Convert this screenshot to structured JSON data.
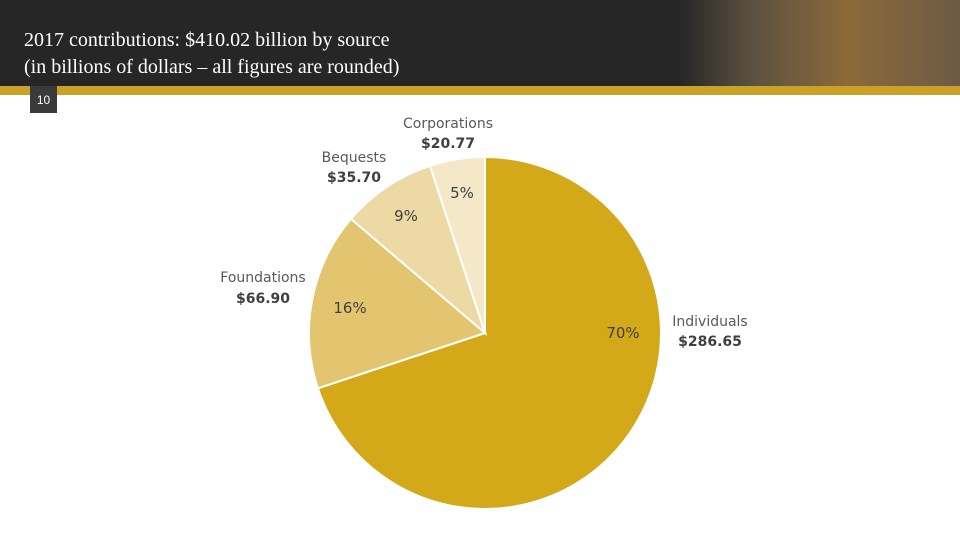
{
  "header": {
    "title_lines": [
      "2017 contributions: $410.02 billion by source",
      "(in billions of dollars – all figures are rounded)"
    ],
    "slide_number": "10"
  },
  "chart_data": {
    "type": "pie",
    "categories": [
      "Individuals",
      "Foundations",
      "Bequests",
      "Corporations"
    ],
    "values": [
      286.65,
      66.9,
      35.7,
      20.77
    ],
    "value_labels": [
      "$286.65",
      "$66.90",
      "$35.70",
      "$20.77"
    ],
    "percent_labels": [
      "70%",
      "16%",
      "9%",
      "5%"
    ],
    "colors": [
      "#d3a91a",
      "#e3c56f",
      "#ecd9a3",
      "#f4e8c8"
    ]
  }
}
